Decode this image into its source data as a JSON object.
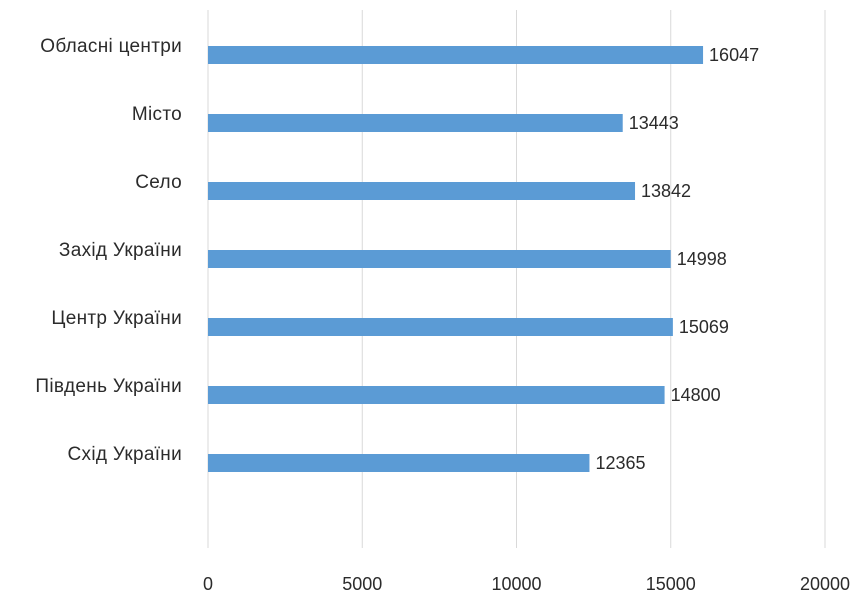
{
  "chart_data": {
    "type": "bar",
    "orientation": "horizontal",
    "title": "",
    "xlabel": "",
    "ylabel": "",
    "categories": [
      "Обласні центри",
      "Місто",
      "Село",
      "Захід України",
      "Центр України",
      "Південь України",
      "Схід України"
    ],
    "values": [
      16047,
      13443,
      13842,
      14998,
      15069,
      14800,
      12365
    ],
    "data_labels": [
      "16047",
      "13443",
      "13842",
      "14998",
      "15069",
      "14800",
      "12365"
    ],
    "xlim": [
      0,
      20000
    ],
    "x_ticks": [
      0,
      5000,
      10000,
      15000,
      20000
    ],
    "x_tick_labels": [
      "0",
      "5000",
      "10000",
      "15000",
      "20000"
    ],
    "grid": true,
    "legend": "none",
    "bar_color": "#5B9BD5",
    "grid_color": "#D9D9D9"
  }
}
